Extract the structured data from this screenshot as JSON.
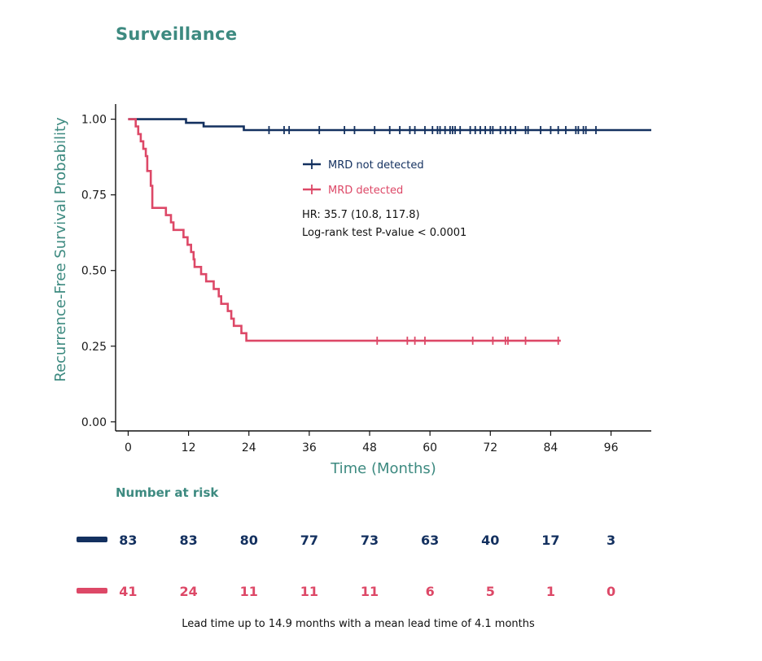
{
  "title": "Surveillance",
  "chart_data": {
    "type": "line",
    "title": "Surveillance",
    "xlabel": "Time (Months)",
    "ylabel": "Recurrence-Free Survival Probability",
    "xlim": [
      -2.5,
      104
    ],
    "ylim": [
      -0.03,
      1.05
    ],
    "xticks": [
      0,
      12,
      24,
      36,
      48,
      60,
      72,
      84,
      96
    ],
    "xtick_labels": [
      "0",
      "12",
      "24",
      "36",
      "48",
      "60",
      "72",
      "84",
      "96"
    ],
    "yticks": [
      0,
      0.25,
      0.5,
      0.75,
      1.0
    ],
    "ytick_labels": [
      "0.00",
      "0.25",
      "0.50",
      "0.75",
      "1.00"
    ],
    "legend_position": "inside, upper-center",
    "series": [
      {
        "name": "MRD not detected",
        "color": "#13305f",
        "steps": [
          [
            0,
            1.0
          ],
          [
            11.5,
            0.988
          ],
          [
            15,
            0.976
          ],
          [
            23,
            0.964
          ],
          [
            104,
            0.964
          ]
        ],
        "censored": [
          28,
          31,
          32,
          38,
          43,
          45,
          49,
          52,
          54,
          56,
          57,
          59,
          60.5,
          61.5,
          62,
          63,
          64,
          64.5,
          65,
          66,
          68,
          69,
          70,
          71,
          72,
          72.5,
          74,
          75,
          76,
          77,
          79,
          79.5,
          82,
          84,
          85.5,
          87,
          89,
          89.5,
          90.5,
          91,
          93
        ]
      },
      {
        "name": "MRD detected",
        "color": "#dd4867",
        "steps": [
          [
            0,
            1.0
          ],
          [
            1.5,
            0.976
          ],
          [
            2,
            0.951
          ],
          [
            2.5,
            0.927
          ],
          [
            3,
            0.902
          ],
          [
            3.5,
            0.878
          ],
          [
            3.8,
            0.829
          ],
          [
            4.5,
            0.78
          ],
          [
            4.8,
            0.707
          ],
          [
            7.5,
            0.683
          ],
          [
            8.5,
            0.659
          ],
          [
            9,
            0.634
          ],
          [
            11,
            0.61
          ],
          [
            11.8,
            0.585
          ],
          [
            12.5,
            0.561
          ],
          [
            13,
            0.537
          ],
          [
            13.2,
            0.512
          ],
          [
            14.5,
            0.488
          ],
          [
            15.5,
            0.464
          ],
          [
            17,
            0.439
          ],
          [
            18,
            0.415
          ],
          [
            18.5,
            0.39
          ],
          [
            19.8,
            0.366
          ],
          [
            20.5,
            0.341
          ],
          [
            21,
            0.317
          ],
          [
            22.5,
            0.293
          ],
          [
            23.5,
            0.268
          ],
          [
            86,
            0.268
          ]
        ],
        "censored": [
          49.5,
          55.5,
          57,
          59,
          68.5,
          72.5,
          75,
          75.5,
          79,
          85.5
        ]
      }
    ],
    "annotations": [
      "HR: 35.7 (10.8, 117.8)",
      "Log-rank test P-value < 0.0001"
    ]
  },
  "risk_table": {
    "title": "Number at risk",
    "times": [
      0,
      12,
      24,
      36,
      48,
      60,
      72,
      84,
      96
    ],
    "rows": [
      {
        "name": "MRD not detected",
        "color": "#13305f",
        "values": [
          "83",
          "83",
          "80",
          "77",
          "73",
          "63",
          "40",
          "17",
          "3"
        ]
      },
      {
        "name": "MRD detected",
        "color": "#dd4867",
        "values": [
          "41",
          "24",
          "11",
          "11",
          "11",
          "6",
          "5",
          "1",
          "0"
        ]
      }
    ]
  },
  "footnote": "Lead time up to 14.9 months with a mean lead time of 4.1 months"
}
